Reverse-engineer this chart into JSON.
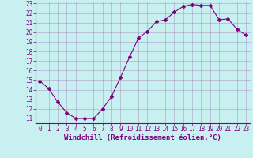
{
  "x": [
    0,
    1,
    2,
    3,
    4,
    5,
    6,
    7,
    8,
    9,
    10,
    11,
    12,
    13,
    14,
    15,
    16,
    17,
    18,
    19,
    20,
    21,
    22,
    23
  ],
  "y": [
    14.9,
    14.1,
    12.7,
    11.6,
    11.0,
    11.0,
    11.0,
    12.0,
    13.3,
    15.3,
    17.4,
    19.4,
    20.1,
    21.1,
    21.3,
    22.1,
    22.7,
    22.9,
    22.8,
    22.8,
    21.3,
    21.4,
    20.3,
    19.7
  ],
  "line_color": "#800080",
  "marker": "D",
  "marker_size": 2,
  "bg_color": "#c8f0f0",
  "grid_color": "#9966aa",
  "xlabel": "Windchill (Refroidissement éolien,°C)",
  "xlabel_fontsize": 6.5,
  "tick_fontsize": 5.5,
  "xlim": [
    -0.5,
    23.5
  ],
  "ylim": [
    10.5,
    23.2
  ],
  "yticks": [
    11,
    12,
    13,
    14,
    15,
    16,
    17,
    18,
    19,
    20,
    21,
    22,
    23
  ],
  "xticks": [
    0,
    1,
    2,
    3,
    4,
    5,
    6,
    7,
    8,
    9,
    10,
    11,
    12,
    13,
    14,
    15,
    16,
    17,
    18,
    19,
    20,
    21,
    22,
    23
  ]
}
